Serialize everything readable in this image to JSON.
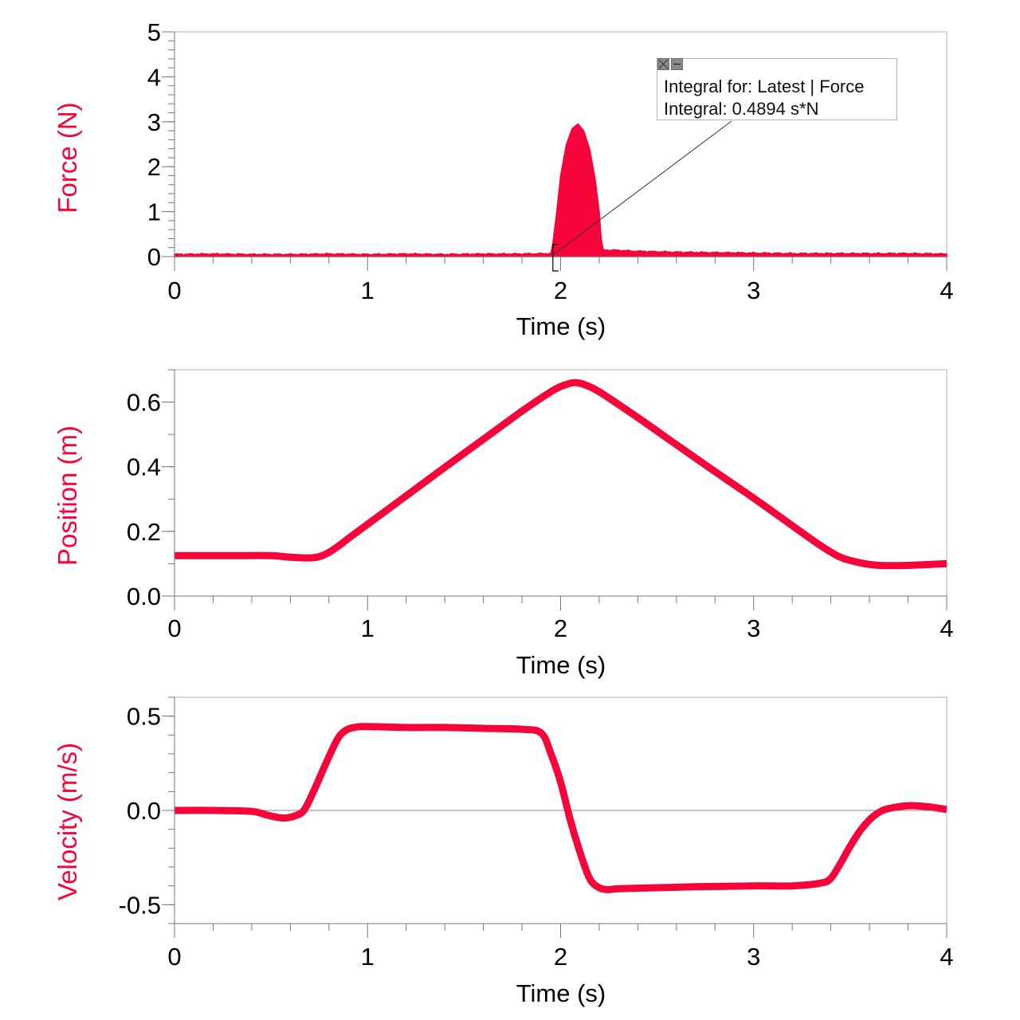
{
  "chart_data": [
    {
      "type": "area",
      "title": "",
      "xlabel": "Time (s)",
      "ylabel": "Force (N)",
      "xlim": [
        0,
        4
      ],
      "ylim": [
        0,
        5
      ],
      "x_ticks": [
        "0",
        "1",
        "2",
        "3",
        "4"
      ],
      "y_ticks": [
        "0",
        "1",
        "2",
        "3",
        "4",
        "5"
      ],
      "grid": false,
      "series_color": "#f5053a",
      "series": [
        {
          "name": "Force",
          "x": [
            0,
            0.2,
            0.4,
            0.6,
            0.8,
            1.0,
            1.2,
            1.4,
            1.6,
            1.8,
            1.95,
            1.96,
            1.98,
            2.0,
            2.03,
            2.06,
            2.09,
            2.12,
            2.15,
            2.18,
            2.2,
            2.21,
            2.22,
            2.3,
            2.4,
            2.6,
            2.8,
            3.0,
            3.2,
            3.4,
            3.6,
            3.8,
            4.0
          ],
          "y": [
            0.05,
            0.06,
            0.05,
            0.05,
            0.06,
            0.05,
            0.06,
            0.05,
            0.06,
            0.06,
            0.07,
            0.3,
            1.0,
            1.8,
            2.5,
            2.85,
            2.95,
            2.8,
            2.4,
            1.7,
            1.0,
            0.4,
            0.15,
            0.14,
            0.12,
            0.1,
            0.09,
            0.08,
            0.07,
            0.07,
            0.07,
            0.07,
            0.06
          ]
        }
      ],
      "annotation": {
        "line1": "Integral for: Latest | Force",
        "line2": "Integral: 0.4894 s*N",
        "integral_start_time": 1.96,
        "close_icon": "close-icon",
        "minimize_icon": "minimize-icon"
      }
    },
    {
      "type": "line",
      "title": "",
      "xlabel": "Time (s)",
      "ylabel": "Position (m)",
      "xlim": [
        0,
        4
      ],
      "ylim": [
        0,
        0.7
      ],
      "x_ticks": [
        "0",
        "1",
        "2",
        "3",
        "4"
      ],
      "y_ticks": [
        "0.0",
        "0.2",
        "0.4",
        "0.6"
      ],
      "grid": false,
      "series_color": "#f5053a",
      "series": [
        {
          "name": "Position",
          "x": [
            0,
            0.3,
            0.5,
            0.6,
            0.7,
            0.75,
            0.8,
            0.85,
            0.9,
            1.0,
            1.2,
            1.4,
            1.6,
            1.8,
            1.95,
            2.0,
            2.05,
            2.08,
            2.12,
            2.2,
            2.4,
            2.6,
            2.8,
            3.0,
            3.2,
            3.35,
            3.45,
            3.55,
            3.65,
            3.8,
            4.0
          ],
          "y": [
            0.125,
            0.125,
            0.125,
            0.12,
            0.118,
            0.122,
            0.135,
            0.155,
            0.178,
            0.222,
            0.31,
            0.398,
            0.485,
            0.572,
            0.632,
            0.648,
            0.658,
            0.66,
            0.655,
            0.632,
            0.552,
            0.468,
            0.385,
            0.303,
            0.218,
            0.155,
            0.12,
            0.103,
            0.095,
            0.095,
            0.1
          ]
        }
      ]
    },
    {
      "type": "line",
      "title": "",
      "xlabel": "Time (s)",
      "ylabel": "Velocity (m/s)",
      "xlim": [
        0,
        4
      ],
      "ylim": [
        -0.6,
        0.6
      ],
      "x_ticks": [
        "0",
        "1",
        "2",
        "3",
        "4"
      ],
      "y_ticks": [
        "-0.5",
        "0.0",
        "0.5"
      ],
      "grid": false,
      "zero_line": true,
      "series_color": "#f5053a",
      "series": [
        {
          "name": "Velocity",
          "x": [
            0,
            0.2,
            0.4,
            0.48,
            0.56,
            0.62,
            0.67,
            0.72,
            0.78,
            0.84,
            0.88,
            0.93,
            1.0,
            1.2,
            1.4,
            1.6,
            1.8,
            1.9,
            1.95,
            2.0,
            2.05,
            2.1,
            2.15,
            2.2,
            2.25,
            2.3,
            2.5,
            2.7,
            3.0,
            3.2,
            3.35,
            3.4,
            3.45,
            3.5,
            3.55,
            3.6,
            3.65,
            3.7,
            3.8,
            3.9,
            4.0
          ],
          "y": [
            0.0,
            0.0,
            -0.005,
            -0.025,
            -0.04,
            -0.03,
            0.0,
            0.1,
            0.24,
            0.37,
            0.42,
            0.44,
            0.445,
            0.44,
            0.44,
            0.435,
            0.43,
            0.41,
            0.3,
            0.15,
            -0.05,
            -0.22,
            -0.36,
            -0.41,
            -0.42,
            -0.415,
            -0.41,
            -0.405,
            -0.4,
            -0.4,
            -0.385,
            -0.36,
            -0.28,
            -0.19,
            -0.11,
            -0.05,
            -0.01,
            0.01,
            0.025,
            0.02,
            0.005
          ]
        }
      ]
    }
  ]
}
